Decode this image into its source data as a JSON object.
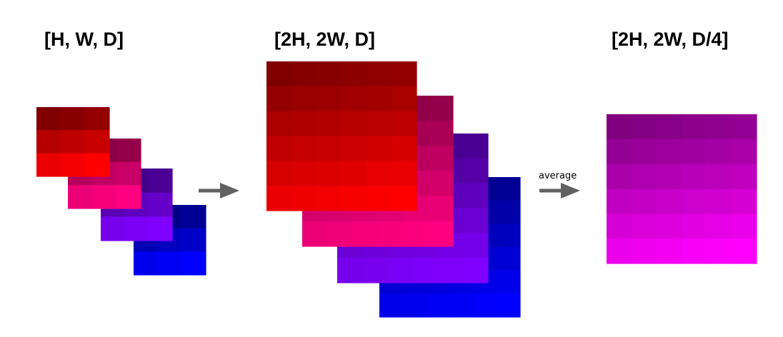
{
  "labels": {
    "input": "[H, W, D]",
    "upsampled": "[2H, 2W, D]",
    "output": "[2H, 2W, D/4]",
    "operation": "average"
  },
  "diagram": {
    "arrow_color": "#616161",
    "layer_colors": {
      "red": "#ff0000",
      "pink": "#ff0080",
      "purple": "#8000ff",
      "blue": "#0000ff",
      "magenta": "#ff00ff"
    }
  }
}
